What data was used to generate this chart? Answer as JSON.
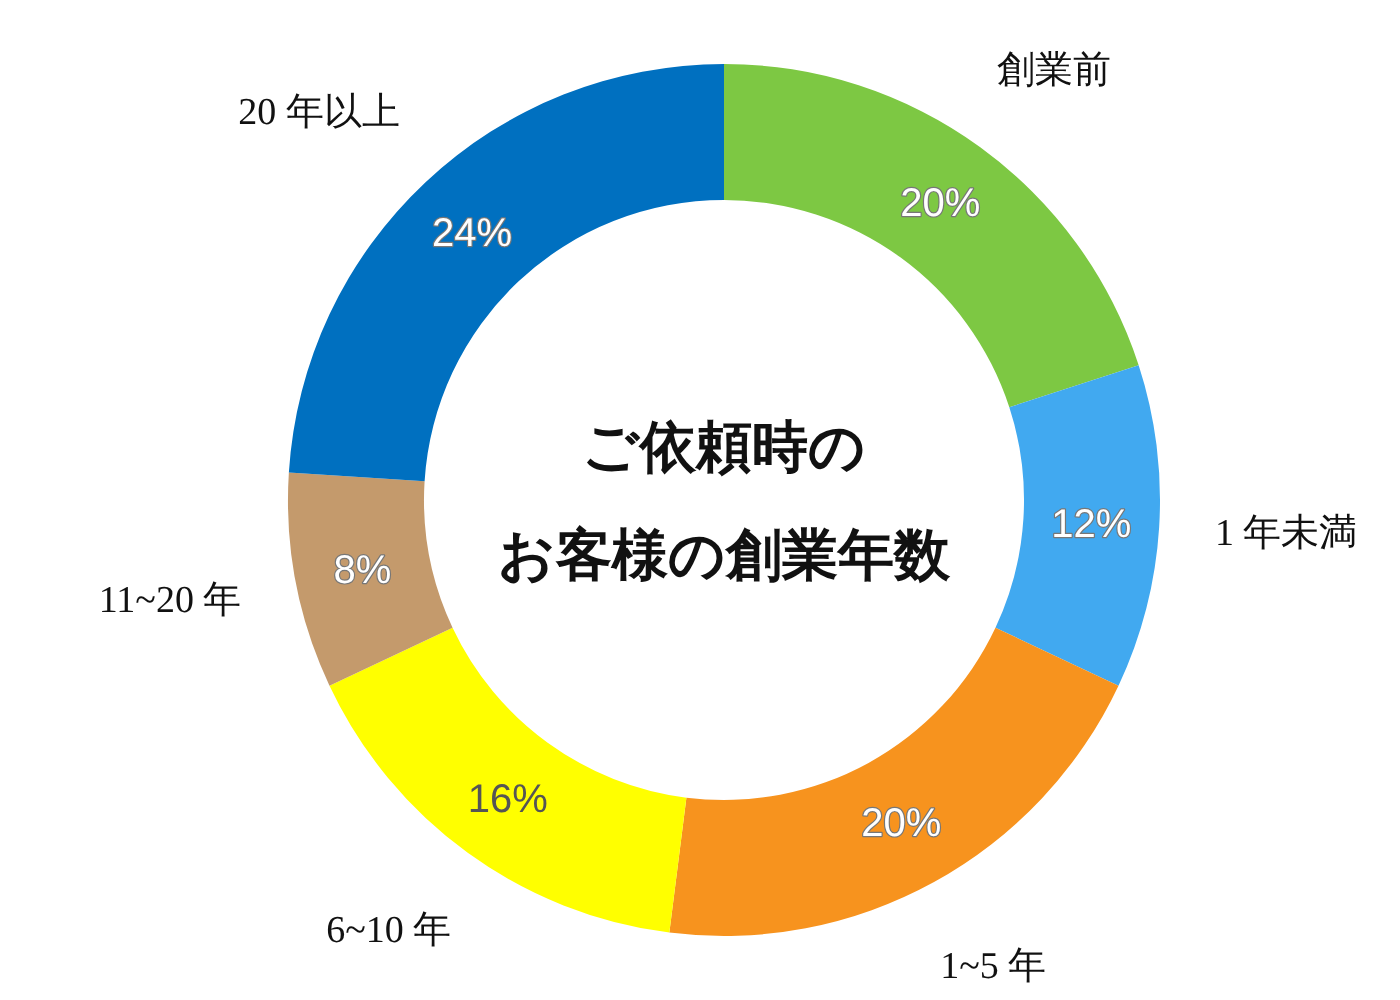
{
  "chart_data": {
    "type": "donut",
    "title": "ご依頼時の",
    "subtitle": "お客様の創業年数",
    "categories": [
      "創業前",
      "1 年未満",
      "1~5 年",
      "6~10 年",
      "11~20 年",
      "20 年以上"
    ],
    "values": [
      20,
      12,
      20,
      16,
      8,
      24
    ],
    "colors": [
      "#7dc843",
      "#41a9f0",
      "#f7931e",
      "#ffff00",
      "#c49a6c",
      "#0070c0"
    ],
    "value_labels": [
      "20%",
      "12%",
      "20%",
      "16%",
      "8%",
      "24%"
    ]
  }
}
